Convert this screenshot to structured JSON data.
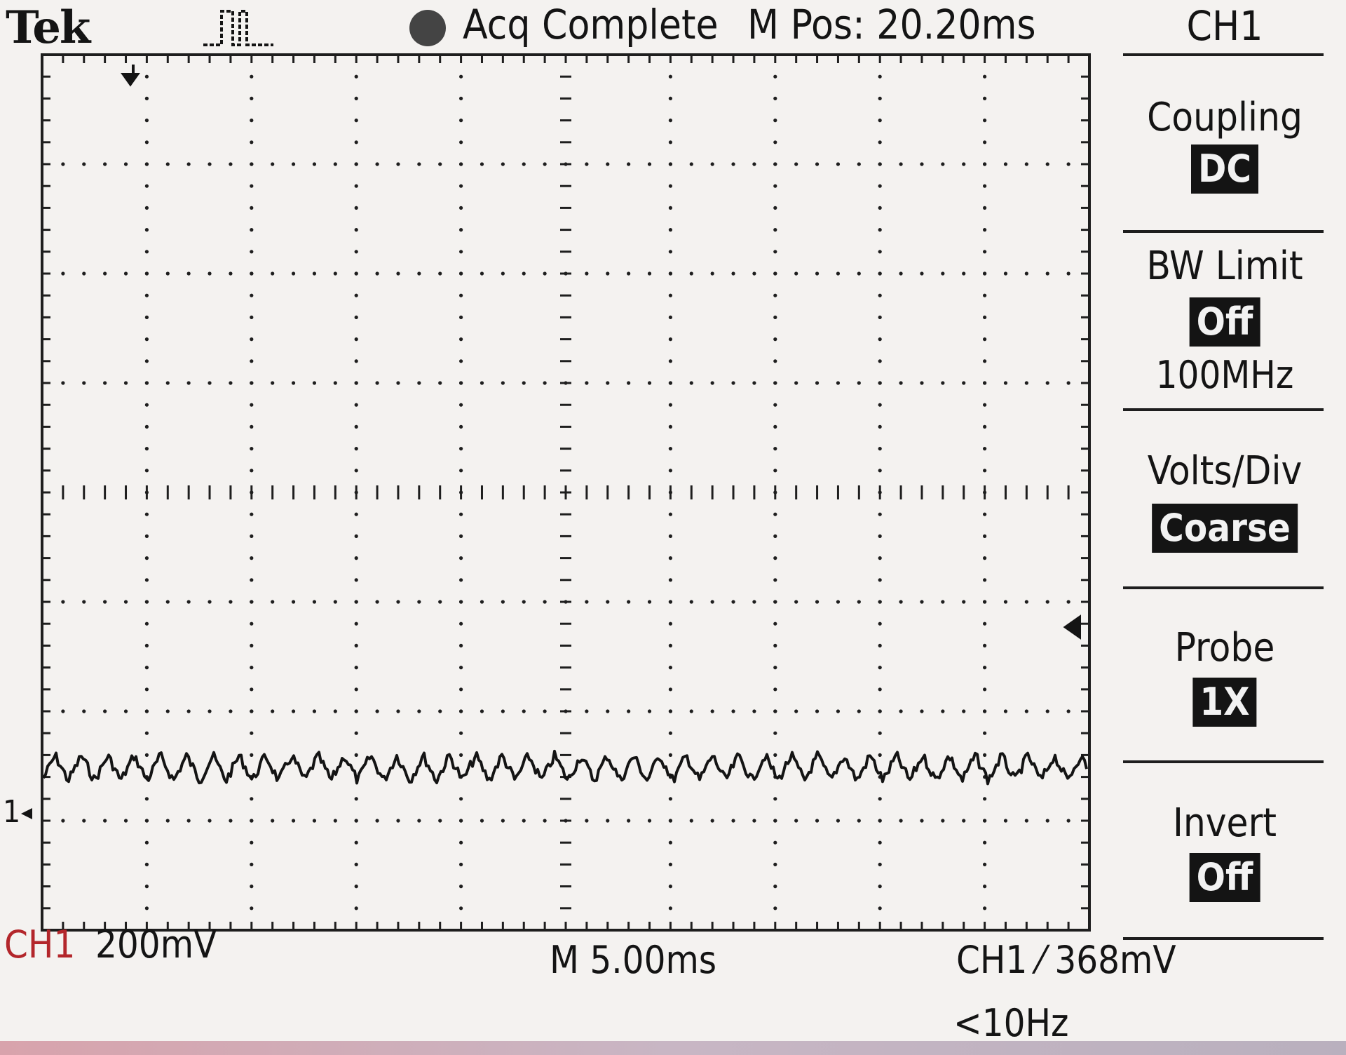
{
  "header": {
    "brand": "Tek",
    "acq_status": "Acq Complete",
    "m_pos": "M Pos: 20.20ms"
  },
  "readouts": {
    "ch1_label": "CH1",
    "ch1_scale": "200mV",
    "timebase": "M 5.00ms",
    "trigger": "CH1 ⁄ 368mV",
    "trigger_freq": "<10Hz",
    "ch1_ground_marker": "1"
  },
  "menu": {
    "title": "CH1",
    "items": [
      {
        "label": "Coupling",
        "value": "DC"
      },
      {
        "label": "BW Limit",
        "value": "Off",
        "sub": "100MHz"
      },
      {
        "label": "Volts/Div",
        "value": "Coarse"
      },
      {
        "label": "Probe",
        "value": "1X"
      },
      {
        "label": "Invert",
        "value": "Off"
      }
    ]
  },
  "colors": {
    "background": "#f4f2f0",
    "trace": "#141414",
    "ch1_accent": "#b3262b"
  },
  "icons": {
    "trigger_position": "down-arrow-marker",
    "trigger_level": "left-arrow-marker",
    "acquisition": "pulse-icon",
    "run_state": "filled-circle"
  }
}
